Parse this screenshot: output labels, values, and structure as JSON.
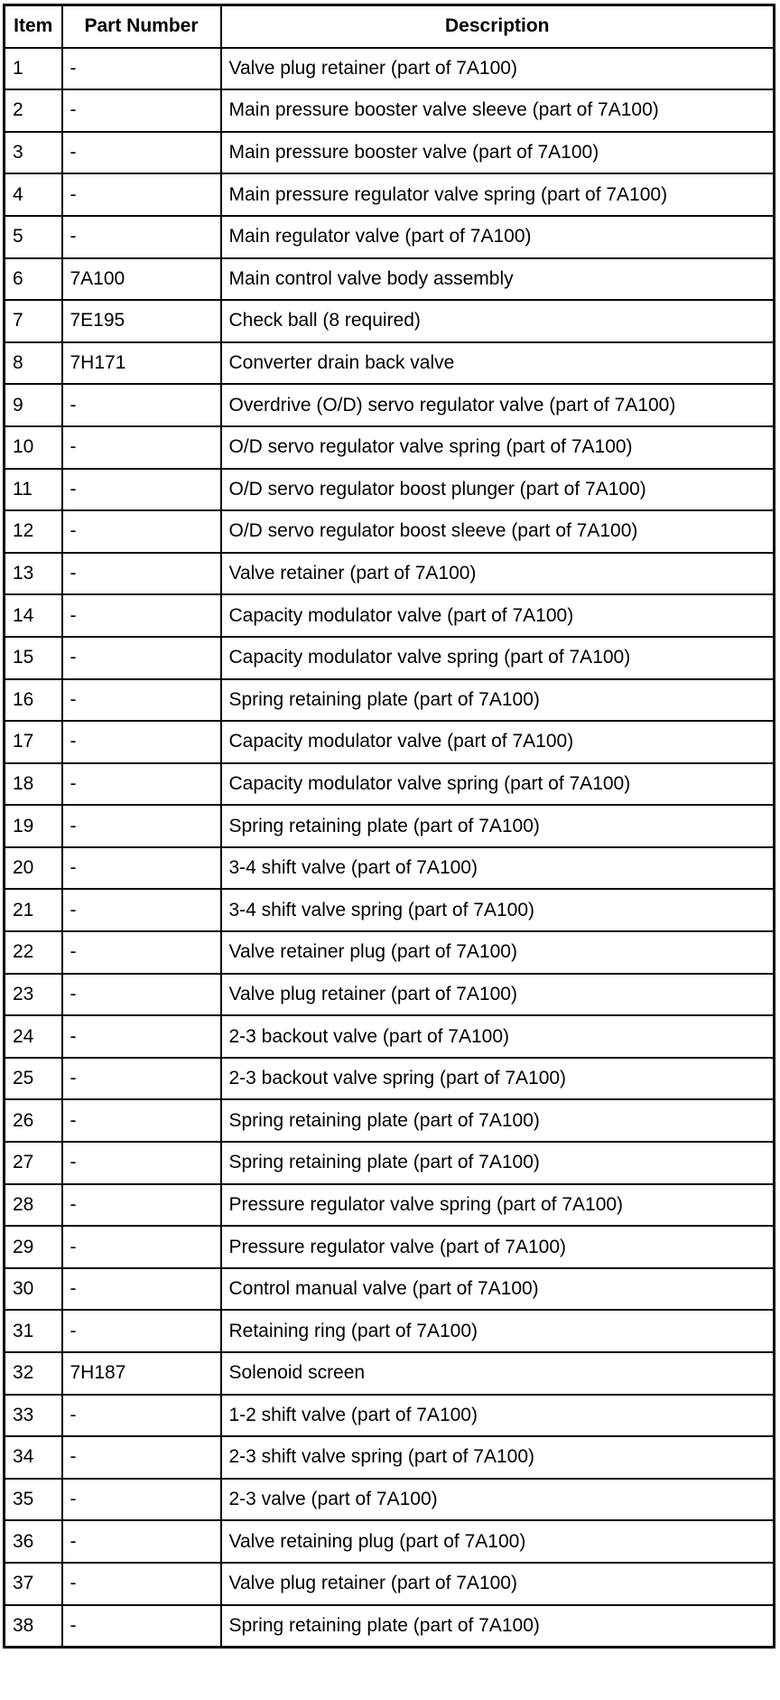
{
  "headers": [
    "Item",
    "Part Number",
    "Description"
  ],
  "rows": [
    [
      "1",
      "-",
      "Valve plug retainer (part of 7A100)"
    ],
    [
      "2",
      "-",
      "Main pressure booster valve sleeve (part of 7A100)"
    ],
    [
      "3",
      "-",
      "Main pressure booster valve (part of 7A100)"
    ],
    [
      "4",
      "-",
      "Main pressure regulator valve spring (part of 7A100)"
    ],
    [
      "5",
      "-",
      "Main regulator valve (part of 7A100)"
    ],
    [
      "6",
      "7A100",
      "Main control valve body assembly"
    ],
    [
      "7",
      "7E195",
      "Check ball (8 required)"
    ],
    [
      "8",
      "7H171",
      "Converter drain back valve"
    ],
    [
      "9",
      "-",
      "Overdrive (O/D) servo regulator valve (part of 7A100)"
    ],
    [
      "10",
      "-",
      "O/D servo regulator valve spring (part of 7A100)"
    ],
    [
      "11",
      "-",
      "O/D servo regulator boost plunger (part of 7A100)"
    ],
    [
      "12",
      "-",
      "O/D servo regulator boost sleeve (part of 7A100)"
    ],
    [
      "13",
      "-",
      "Valve retainer (part of 7A100)"
    ],
    [
      "14",
      "-",
      "Capacity modulator valve (part of 7A100)"
    ],
    [
      "15",
      "-",
      "Capacity modulator valve spring (part of 7A100)"
    ],
    [
      "16",
      "-",
      "Spring retaining plate (part of 7A100)"
    ],
    [
      "17",
      "-",
      "Capacity modulator valve (part of 7A100)"
    ],
    [
      "18",
      "-",
      "Capacity modulator valve spring (part of 7A100)"
    ],
    [
      "19",
      "-",
      "Spring retaining plate (part of 7A100)"
    ],
    [
      "20",
      "-",
      "3-4 shift valve (part of 7A100)"
    ],
    [
      "21",
      "-",
      "3-4 shift valve spring (part of 7A100)"
    ],
    [
      "22",
      "-",
      "Valve retainer plug (part of 7A100)"
    ],
    [
      "23",
      "-",
      "Valve plug retainer (part of 7A100)"
    ],
    [
      "24",
      "-",
      "2-3 backout valve (part of 7A100)"
    ],
    [
      "25",
      "-",
      "2-3 backout valve spring (part of 7A100)"
    ],
    [
      "26",
      "-",
      "Spring retaining plate (part of 7A100)"
    ],
    [
      "27",
      "-",
      "Spring retaining plate (part of 7A100)"
    ],
    [
      "28",
      "-",
      "Pressure regulator valve spring (part of 7A100)"
    ],
    [
      "29",
      "-",
      "Pressure regulator valve (part of 7A100)"
    ],
    [
      "30",
      "-",
      "Control manual valve (part of 7A100)"
    ],
    [
      "31",
      "-",
      "Retaining ring (part of 7A100)"
    ],
    [
      "32",
      "7H187",
      "Solenoid screen"
    ],
    [
      "33",
      "-",
      "1-2 shift valve (part of 7A100)"
    ],
    [
      "34",
      "-",
      "2-3 shift valve spring (part of 7A100)"
    ],
    [
      "35",
      "-",
      "2-3 valve (part of 7A100)"
    ],
    [
      "36",
      "-",
      "Valve retaining plug (part of 7A100)"
    ],
    [
      "37",
      "-",
      "Valve plug retainer (part of 7A100)"
    ],
    [
      "38",
      "-",
      "Spring retaining plate (part of 7A100)"
    ]
  ]
}
